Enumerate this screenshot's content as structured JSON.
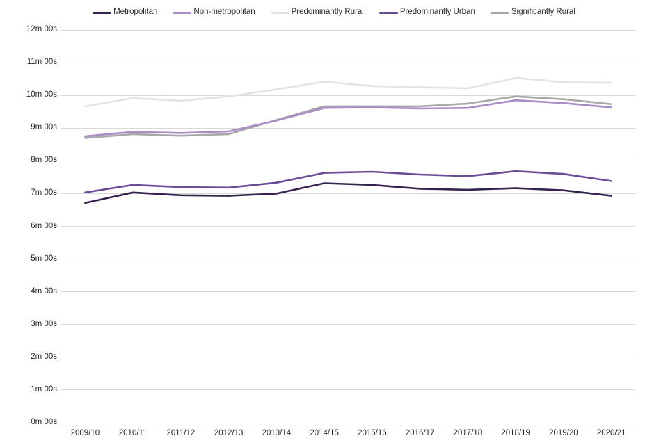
{
  "chart_data": {
    "type": "line",
    "title": "",
    "xlabel": "",
    "ylabel": "",
    "unit": "minutes and seconds",
    "grid": true,
    "legend_position": "top",
    "ylim_seconds": [
      0,
      720
    ],
    "ytick_interval_seconds": 60,
    "yticks": [
      "0m 00s",
      "1m 00s",
      "2m 00s",
      "3m 00s",
      "4m 00s",
      "5m 00s",
      "6m 00s",
      "7m 00s",
      "8m 00s",
      "9m 00s",
      "10m 00s",
      "11m 00s",
      "12m 00s"
    ],
    "categories": [
      "2009/10",
      "2010/11",
      "2011/12",
      "2012/13",
      "2013/14",
      "2014/15",
      "2015/16",
      "2016/17",
      "2017/18",
      "2018/19",
      "2019/20",
      "2020/21"
    ],
    "series": [
      {
        "name": "Metropolitan",
        "color": "#35234e",
        "z": 5,
        "values_seconds": [
          403,
          422,
          417,
          416,
          420,
          439,
          436,
          429,
          427,
          430,
          426,
          416
        ]
      },
      {
        "name": "Non-metropolitan",
        "color": "#a98cc5",
        "z": 3,
        "values_seconds": [
          525,
          533,
          531,
          534,
          554,
          577,
          578,
          576,
          577,
          591,
          586,
          578
        ]
      },
      {
        "name": "Predominantly Rural",
        "color": "#e3e2e4",
        "z": 1,
        "values_seconds": [
          580,
          595,
          590,
          598,
          611,
          625,
          617,
          615,
          613,
          632,
          624,
          623
        ]
      },
      {
        "name": "Predominantly Urban",
        "color": "#6a4b97",
        "z": 4,
        "values_seconds": [
          422,
          436,
          432,
          431,
          440,
          458,
          460,
          455,
          452,
          461,
          456,
          443
        ]
      },
      {
        "name": "Significantly Rural",
        "color": "#a8a7a9",
        "z": 2,
        "values_seconds": [
          522,
          529,
          526,
          529,
          555,
          580,
          580,
          580,
          585,
          598,
          593,
          584
        ]
      }
    ],
    "colors": {
      "gridline": "#d9d9d9",
      "text": "#262626",
      "background": "#ffffff"
    }
  }
}
